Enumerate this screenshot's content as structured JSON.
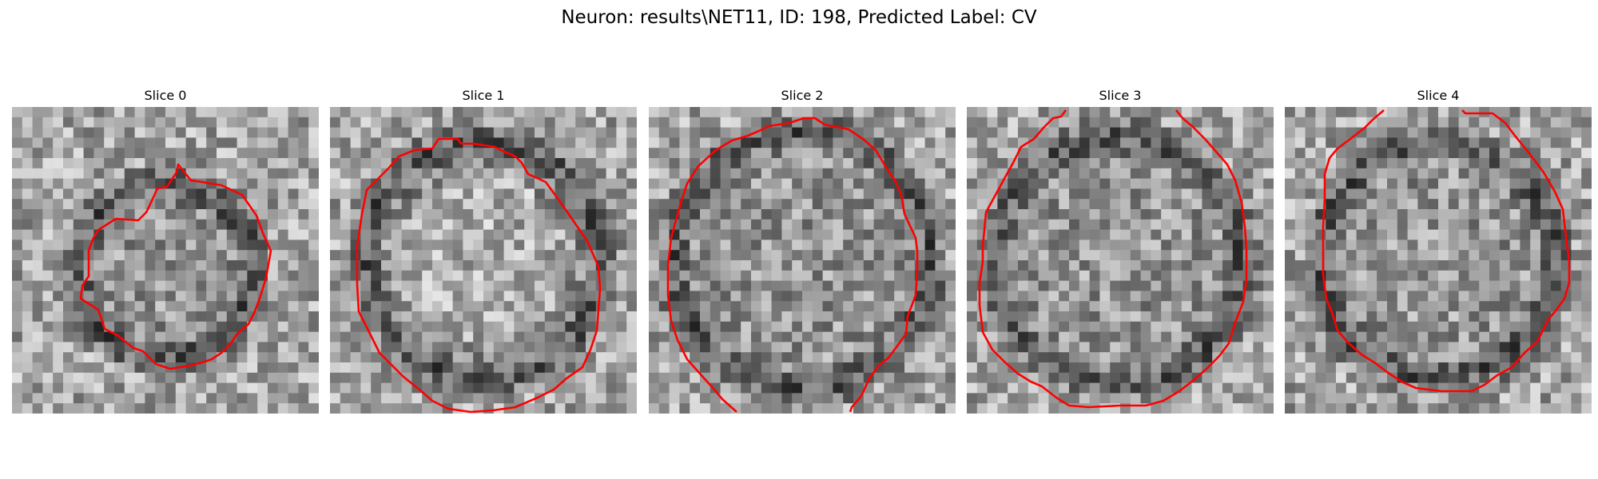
{
  "figure": {
    "title": "Neuron: results\\NET11, ID: 198, Predicted Label: CV"
  },
  "colors": {
    "contour": "#ff0000",
    "background": "#ffffff"
  },
  "slices": [
    {
      "title": "Slice 0",
      "image": "grayscale-microscopy-patch",
      "overlay": "red-segmentation-contour"
    },
    {
      "title": "Slice 1",
      "image": "grayscale-microscopy-patch",
      "overlay": "red-segmentation-contour"
    },
    {
      "title": "Slice 2",
      "image": "grayscale-microscopy-patch",
      "overlay": "red-segmentation-contour"
    },
    {
      "title": "Slice 3",
      "image": "grayscale-microscopy-patch",
      "overlay": "red-segmentation-contour"
    },
    {
      "title": "Slice 4",
      "image": "grayscale-microscopy-patch",
      "overlay": "red-segmentation-contour"
    }
  ]
}
